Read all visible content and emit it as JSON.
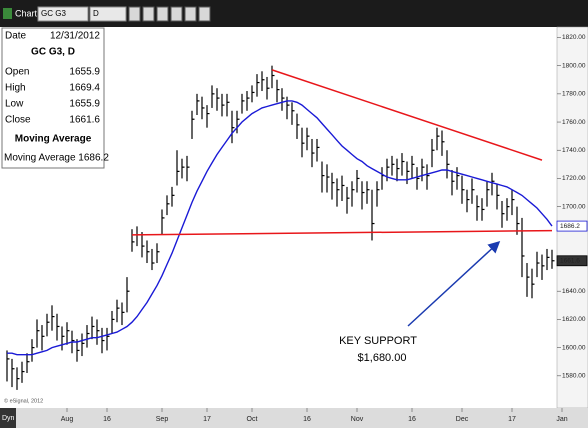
{
  "toolbar": {
    "title": "Chart",
    "symbol": "GC G3",
    "interval": "D"
  },
  "info_panel": {
    "date_label": "Date",
    "date": "12/31/2012",
    "symbol_line": "GC G3, D",
    "rows": [
      {
        "label": "Open",
        "value": "1655.9"
      },
      {
        "label": "High",
        "value": "1669.4"
      },
      {
        "label": "Low",
        "value": "1655.9"
      },
      {
        "label": "Close",
        "value": "1661.6"
      }
    ],
    "study": "Moving Average",
    "study_value": "Moving Average 1686.2"
  },
  "footer": {
    "copyright": "© eSignal, 2012",
    "mode": "Dyn"
  },
  "chart_data": {
    "type": "ohlc",
    "bar_color": "#000000",
    "high": [
      1598,
      1592,
      1586,
      1590,
      1596,
      1606,
      1620,
      1616,
      1624,
      1630,
      1624,
      1615,
      1618,
      1612,
      1606,
      1610,
      1616,
      1622,
      1620,
      1614,
      1614,
      1626,
      1634,
      1632,
      1650,
      1684,
      1686,
      1682,
      1676,
      1670,
      1674,
      1698,
      1708,
      1714,
      1740,
      1734,
      1736,
      1768,
      1780,
      1778,
      1772,
      1786,
      1784,
      1780,
      1780,
      1768,
      1768,
      1780,
      1782,
      1786,
      1794,
      1796,
      1792,
      1800,
      1790,
      1784,
      1778,
      1774,
      1766,
      1756,
      1756,
      1748,
      1748,
      1732,
      1730,
      1724,
      1720,
      1722,
      1714,
      1718,
      1726,
      1718,
      1718,
      1712,
      1718,
      1728,
      1734,
      1736,
      1734,
      1738,
      1732,
      1736,
      1728,
      1734,
      1730,
      1748,
      1756,
      1754,
      1740,
      1726,
      1728,
      1722,
      1712,
      1720,
      1708,
      1706,
      1718,
      1724,
      1716,
      1704,
      1706,
      1712,
      1700,
      1692,
      1660,
      1656,
      1668,
      1666,
      1670,
      1669.4
    ],
    "low": [
      1576,
      1572,
      1570,
      1575,
      1582,
      1590,
      1600,
      1598,
      1608,
      1612,
      1605,
      1598,
      1602,
      1596,
      1590,
      1594,
      1600,
      1606,
      1602,
      1596,
      1598,
      1610,
      1618,
      1616,
      1625,
      1668,
      1672,
      1664,
      1660,
      1655,
      1660,
      1680,
      1694,
      1700,
      1715,
      1720,
      1718,
      1748,
      1765,
      1762,
      1756,
      1770,
      1768,
      1764,
      1764,
      1745,
      1752,
      1766,
      1768,
      1774,
      1778,
      1782,
      1776,
      1784,
      1774,
      1768,
      1762,
      1758,
      1748,
      1735,
      1740,
      1728,
      1732,
      1710,
      1710,
      1705,
      1700,
      1704,
      1695,
      1700,
      1710,
      1698,
      1702,
      1676,
      1700,
      1712,
      1718,
      1722,
      1718,
      1722,
      1716,
      1720,
      1712,
      1718,
      1712,
      1728,
      1740,
      1736,
      1720,
      1708,
      1712,
      1702,
      1696,
      1702,
      1690,
      1690,
      1700,
      1708,
      1698,
      1685,
      1690,
      1694,
      1680,
      1650,
      1636,
      1635,
      1650,
      1648,
      1655,
      1655.9
    ],
    "close": [
      1592,
      1585,
      1578,
      1583,
      1590,
      1600,
      1612,
      1608,
      1618,
      1622,
      1615,
      1608,
      1612,
      1605,
      1598,
      1603,
      1610,
      1615,
      1612,
      1605,
      1608,
      1620,
      1628,
      1625,
      1640,
      1675,
      1680,
      1672,
      1668,
      1660,
      1668,
      1692,
      1702,
      1708,
      1725,
      1728,
      1728,
      1762,
      1775,
      1770,
      1766,
      1780,
      1777,
      1772,
      1774,
      1756,
      1762,
      1775,
      1777,
      1781,
      1788,
      1790,
      1784,
      1793,
      1783,
      1777,
      1772,
      1768,
      1758,
      1745,
      1750,
      1738,
      1742,
      1722,
      1721,
      1717,
      1712,
      1715,
      1706,
      1712,
      1720,
      1710,
      1712,
      1688,
      1712,
      1722,
      1728,
      1730,
      1727,
      1732,
      1725,
      1730,
      1720,
      1728,
      1722,
      1740,
      1750,
      1746,
      1730,
      1718,
      1722,
      1712,
      1705,
      1712,
      1700,
      1698,
      1712,
      1718,
      1708,
      1695,
      1700,
      1705,
      1688,
      1665,
      1650,
      1645,
      1660,
      1658,
      1664,
      1661.6
    ],
    "moving_average": {
      "color": "#1a1ad6",
      "values": [
        1596,
        1596,
        1595,
        1595,
        1595,
        1595,
        1596,
        1597,
        1598,
        1600,
        1601,
        1602,
        1603,
        1604,
        1604,
        1605,
        1606,
        1607,
        1607,
        1608,
        1609,
        1610,
        1611,
        1613,
        1615,
        1618,
        1622,
        1627,
        1632,
        1638,
        1644,
        1651,
        1659,
        1667,
        1676,
        1685,
        1694,
        1703,
        1711,
        1718,
        1725,
        1731,
        1737,
        1742,
        1747,
        1752,
        1756,
        1760,
        1763,
        1766,
        1768,
        1770,
        1771,
        1772,
        1773,
        1774,
        1775,
        1775,
        1774,
        1772,
        1769,
        1766,
        1763,
        1759,
        1755,
        1751,
        1747,
        1743,
        1740,
        1737,
        1734,
        1732,
        1729,
        1727,
        1725,
        1723,
        1721,
        1720,
        1719,
        1719,
        1719,
        1720,
        1721,
        1722,
        1723,
        1724,
        1725,
        1726,
        1726,
        1725,
        1724,
        1723,
        1722,
        1721,
        1720,
        1719,
        1718,
        1717,
        1716,
        1715,
        1714,
        1712,
        1710,
        1708,
        1705,
        1702,
        1699,
        1695,
        1691,
        1686.2
      ]
    },
    "trendlines": [
      {
        "color": "#e8161a",
        "points": [
          [
            53,
            1797
          ],
          [
            107,
            1733
          ]
        ]
      },
      {
        "color": "#e8161a",
        "points": [
          [
            25,
            1680
          ],
          [
            109,
            1683
          ]
        ]
      }
    ],
    "annotations": [
      {
        "text": "KEY SUPPORT"
      },
      {
        "text": "$1,680.00"
      }
    ],
    "xlim": [
      -1.4,
      109.8
    ],
    "xticks": [
      {
        "value": 12,
        "label": "Aug"
      },
      {
        "value": 20,
        "label": "16"
      },
      {
        "value": 31,
        "label": "Sep"
      },
      {
        "value": 40,
        "label": "17"
      },
      {
        "value": 49,
        "label": "Oct"
      },
      {
        "value": 60,
        "label": "16"
      },
      {
        "value": 70,
        "label": "Nov"
      },
      {
        "value": 81,
        "label": "16"
      },
      {
        "value": 91,
        "label": "Dec"
      },
      {
        "value": 101,
        "label": "17"
      },
      {
        "value": 111,
        "label": "Jan"
      }
    ],
    "ylim": [
      1560,
      1826
    ],
    "yticks": [
      {
        "value": 1820,
        "label": "1820.00"
      },
      {
        "value": 1800,
        "label": "1800.00"
      },
      {
        "value": 1780,
        "label": "1780.00"
      },
      {
        "value": 1760,
        "label": "1760.00"
      },
      {
        "value": 1740,
        "label": "1740.00"
      },
      {
        "value": 1720,
        "label": "1720.00"
      },
      {
        "value": 1700,
        "label": "1700.00"
      },
      {
        "value": 1660,
        "label": "1660.00"
      },
      {
        "value": 1640,
        "label": "1640.00"
      },
      {
        "value": 1620,
        "label": "1620.00"
      },
      {
        "value": 1600,
        "label": "1600.00"
      },
      {
        "value": 1580,
        "label": "1580.00"
      }
    ],
    "grid": false
  }
}
